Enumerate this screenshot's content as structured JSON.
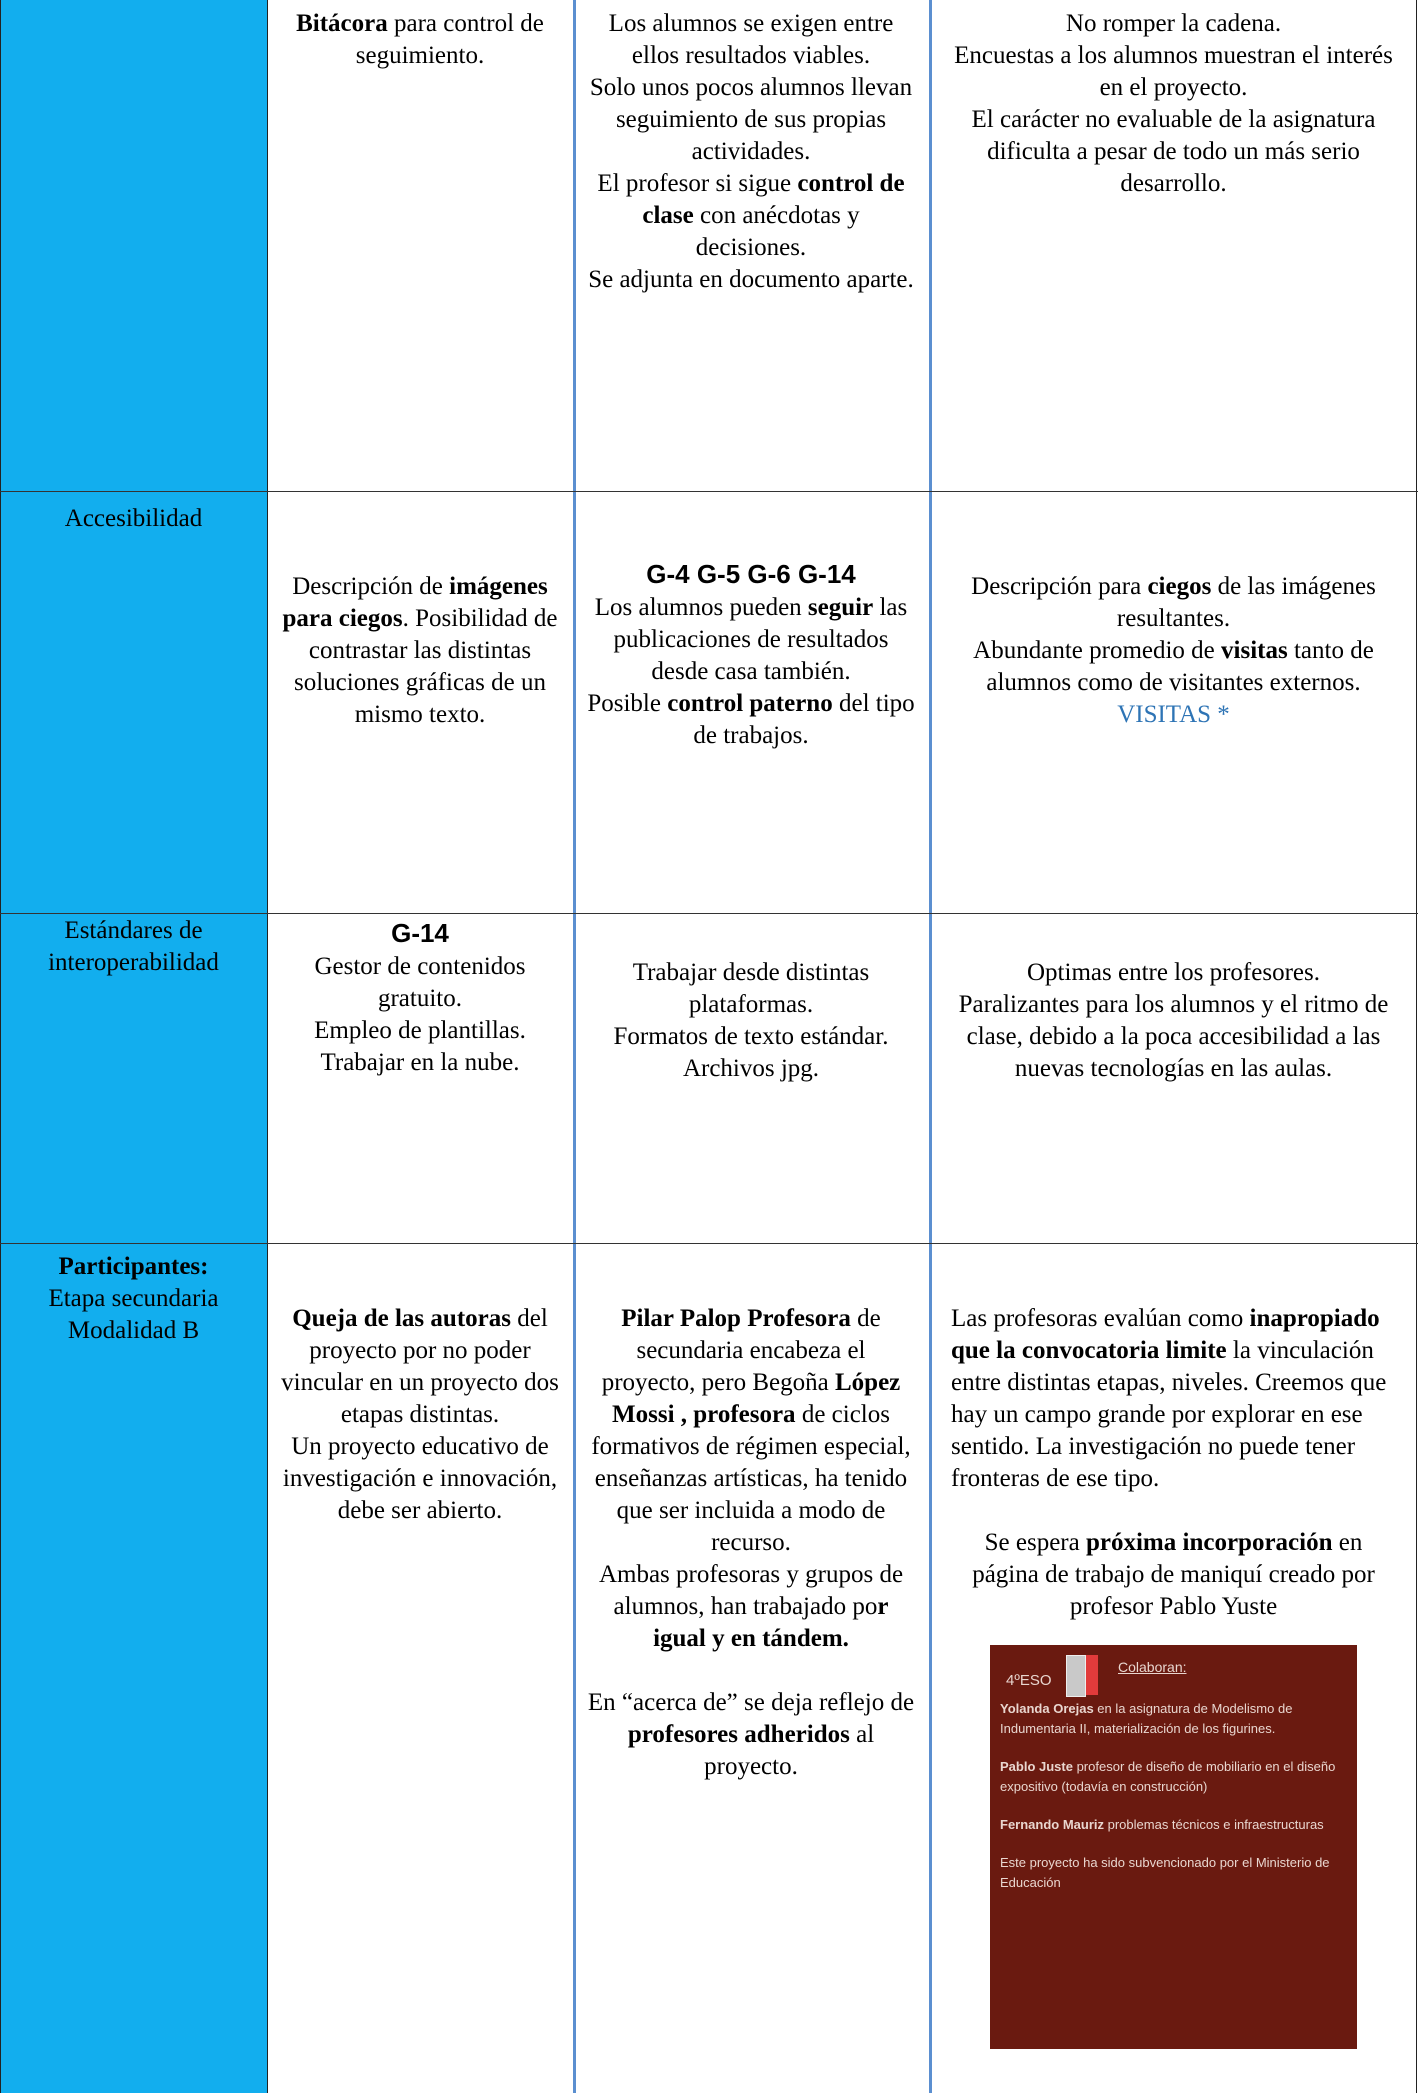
{
  "table": {
    "rows": [
      {
        "cells": [
          {
            "paragraphs": []
          },
          {
            "paragraphs": [
              [
                {
                  "text": "Bitácora",
                  "bold": true
                },
                {
                  "text": " para control de seguimiento."
                }
              ]
            ]
          },
          {
            "paragraphs": [
              [
                {
                  "text": "Los alumnos  se exigen entre ellos resultados viables."
                }
              ],
              [
                {
                  "text": "Solo unos pocos alumnos llevan seguimiento de sus propias actividades."
                }
              ],
              [
                {
                  "text": "El profesor si sigue "
                },
                {
                  "text": "control de clase",
                  "bold": true
                },
                {
                  "text": " con anécdotas y decisiones."
                }
              ],
              [
                {
                  "text": "Se adjunta en documento aparte."
                }
              ]
            ]
          },
          {
            "paragraphs": [
              [
                {
                  "text": "No romper la cadena."
                }
              ],
              [
                {
                  "text": "Encuestas a los alumnos muestran el interés en el proyecto."
                }
              ],
              [
                {
                  "text": "El carácter no evaluable de la asignatura dificulta a pesar de todo un más serio desarrollo."
                }
              ]
            ]
          }
        ]
      },
      {
        "cells": [
          {
            "paragraphs": [
              [
                {
                  "text": "Accesibilidad"
                }
              ]
            ]
          },
          {
            "paragraphs": [
              [
                {
                  "text": "Descripción de "
                },
                {
                  "text": "imágenes para ciegos",
                  "bold": true
                },
                {
                  "text": ". Posibilidad de contrastar las distintas soluciones gráficas de un mismo texto."
                }
              ]
            ]
          },
          {
            "paragraphs": [
              [
                {
                  "text": "G-4   G-5   G-6 G-14",
                  "style": "heading"
                }
              ],
              [
                {
                  "text": "Los alumnos pueden "
                },
                {
                  "text": "seguir",
                  "bold": true
                },
                {
                  "text": " las publicaciones de resultados desde casa también."
                }
              ],
              [
                {
                  "text": "Posible "
                },
                {
                  "text": "control paterno",
                  "bold": true
                },
                {
                  "text": " del tipo de trabajos."
                }
              ]
            ]
          },
          {
            "paragraphs": [
              [
                {
                  "text": "Descripción para "
                },
                {
                  "text": "ciegos",
                  "bold": true
                },
                {
                  "text": " de las imágenes resultantes."
                }
              ],
              [
                {
                  "text": "Abundante promedio de "
                },
                {
                  "text": "visitas",
                  "bold": true
                },
                {
                  "text": " tanto de alumnos como de visitantes externos."
                }
              ],
              [
                {
                  "text": "VISITAS *",
                  "style": "link"
                }
              ]
            ]
          }
        ]
      },
      {
        "cells": [
          {
            "paragraphs": [
              [
                {
                  "text": "Estándares de interoperabilidad"
                }
              ]
            ]
          },
          {
            "paragraphs": [
              [
                {
                  "text": "G-14",
                  "style": "heading"
                }
              ],
              [
                {
                  "text": "Gestor de contenidos gratuito."
                }
              ],
              [
                {
                  "text": "Empleo de plantillas."
                }
              ],
              [
                {
                  "text": "Trabajar en la nube."
                }
              ]
            ]
          },
          {
            "paragraphs": [
              [
                {
                  "text": "Trabajar desde distintas plataformas."
                }
              ],
              [
                {
                  "text": "Formatos de texto estándar."
                }
              ],
              [
                {
                  "text": "Archivos jpg."
                }
              ]
            ]
          },
          {
            "paragraphs": [
              [
                {
                  "text": "Optimas entre los profesores."
                }
              ],
              [
                {
                  "text": "Paralizantes para los alumnos y el ritmo de clase, debido a la poca accesibilidad a las nuevas tecnologías en las aulas."
                }
              ]
            ]
          }
        ]
      },
      {
        "cells": [
          {
            "paragraphs": [
              [
                {
                  "text": "Participantes:",
                  "bold": true
                }
              ],
              [
                {
                  "text": "Etapa secundaria Modalidad B"
                }
              ]
            ]
          },
          {
            "paragraphs": [
              [
                {
                  "text": "Queja de las autoras",
                  "bold": true
                },
                {
                  "text": " del proyecto por no poder vincular en un proyecto dos etapas distintas."
                }
              ],
              [
                {
                  "text": "Un proyecto educativo de investigación e innovación, debe ser abierto."
                }
              ]
            ]
          },
          {
            "paragraphs": [
              [
                {
                  "text": "Pilar Palop Profesora",
                  "bold": true
                },
                {
                  "text": " de secundaria encabeza el proyecto, pero Begoña "
                },
                {
                  "text": "López Mossi , profesora",
                  "bold": true
                },
                {
                  "text": " de ciclos formativos de régimen especial, enseñanzas artísticas, ha tenido que ser incluida a modo de recurso."
                }
              ],
              [
                {
                  "text": "Ambas profesoras y grupos de alumnos, han trabajado po"
                },
                {
                  "text": "r igual y en tándem.",
                  "bold": true
                }
              ],
              [],
              [
                {
                  "text": "En “acerca de” se deja reflejo de "
                },
                {
                  "text": "profesores adheridos",
                  "bold": true
                },
                {
                  "text": " al proyecto."
                }
              ]
            ]
          },
          {
            "paragraphs": [
              [
                {
                  "text": "Las profesoras evalúan como "
                },
                {
                  "text": "inapropiado que la convocatoria limite",
                  "bold": true
                },
                {
                  "text": " la vinculación entre distintas etapas, niveles. Creemos que hay un campo grande por explorar en ese sentido. La investigación no puede tener fronteras de ese tipo."
                }
              ],
              [],
              [
                {
                  "text": "Se espera "
                },
                {
                  "text": "próxima incorporación",
                  "bold": true
                },
                {
                  "text": " en página de trabajo de maniquí creado por profesor Pablo Yuste"
                }
              ]
            ],
            "image": {
              "course": "4ºESO",
              "heading": "Colaboran:",
              "lines": [
                [
                  {
                    "text": "Yolanda Orejas",
                    "bold": true
                  },
                  {
                    "text": " en la asignatura de Modelismo de Indumentaria II, materialización de los figurines."
                  }
                ],
                [
                  {
                    "text": "Pablo Juste",
                    "bold": true
                  },
                  {
                    "text": " profesor de diseño de mobiliario en el diseño expositivo (todavía en construcción)"
                  }
                ],
                [
                  {
                    "text": "Fernando Mauriz",
                    "bold": true
                  },
                  {
                    "text": " problemas técnicos e infraestructuras"
                  }
                ],
                [
                  {
                    "text": "Este proyecto ha sido subvencionado por el Ministerio de Educación"
                  }
                ]
              ]
            }
          }
        ]
      }
    ]
  }
}
